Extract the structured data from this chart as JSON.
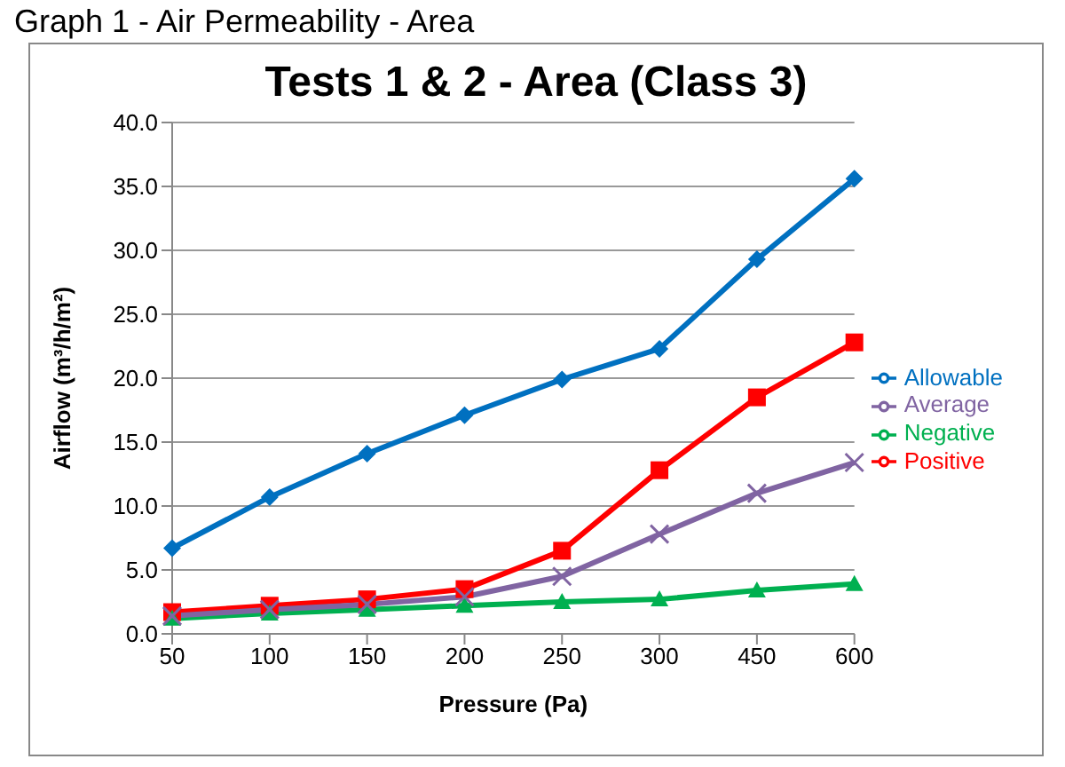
{
  "chart_data": {
    "type": "line",
    "title": "Tests 1 & 2 - Area (Class 3)",
    "annotations": [
      "Graph 1 - Air Permeability - Area"
    ],
    "xlabel": "Pressure (Pa)",
    "ylabel": "Airflow (m³/h/m²)",
    "categories": [
      "50",
      "100",
      "150",
      "200",
      "250",
      "300",
      "450",
      "600"
    ],
    "series": [
      {
        "name": "Allowable",
        "color": "#0070c0",
        "marker": "diamond",
        "values": [
          6.7,
          10.7,
          14.1,
          17.1,
          19.9,
          22.3,
          29.3,
          35.6
        ]
      },
      {
        "name": "Positive",
        "color": "#ff0000",
        "marker": "square",
        "values": [
          1.7,
          2.2,
          2.7,
          3.5,
          6.5,
          12.8,
          18.5,
          22.8
        ]
      },
      {
        "name": "Negative",
        "color": "#00b050",
        "marker": "triangle",
        "values": [
          1.2,
          1.6,
          1.9,
          2.2,
          2.5,
          2.7,
          3.4,
          3.9
        ]
      },
      {
        "name": "Average",
        "color": "#8064a2",
        "marker": "cross",
        "values": [
          1.4,
          1.9,
          2.3,
          2.9,
          4.5,
          7.8,
          11.0,
          13.4
        ]
      }
    ],
    "ylim": [
      0,
      40
    ],
    "yticks": [
      {
        "value": 0,
        "label": "0.0"
      },
      {
        "value": 5,
        "label": "5.0"
      },
      {
        "value": 10,
        "label": "10.0"
      },
      {
        "value": 15,
        "label": "15.0"
      },
      {
        "value": 20,
        "label": "20.0"
      },
      {
        "value": 25,
        "label": "25.0"
      },
      {
        "value": 30,
        "label": "30.0"
      },
      {
        "value": 35,
        "label": "35.0"
      },
      {
        "value": 40,
        "label": "40.0"
      }
    ],
    "grid": "y",
    "legend": "right",
    "line_style": "solid"
  }
}
